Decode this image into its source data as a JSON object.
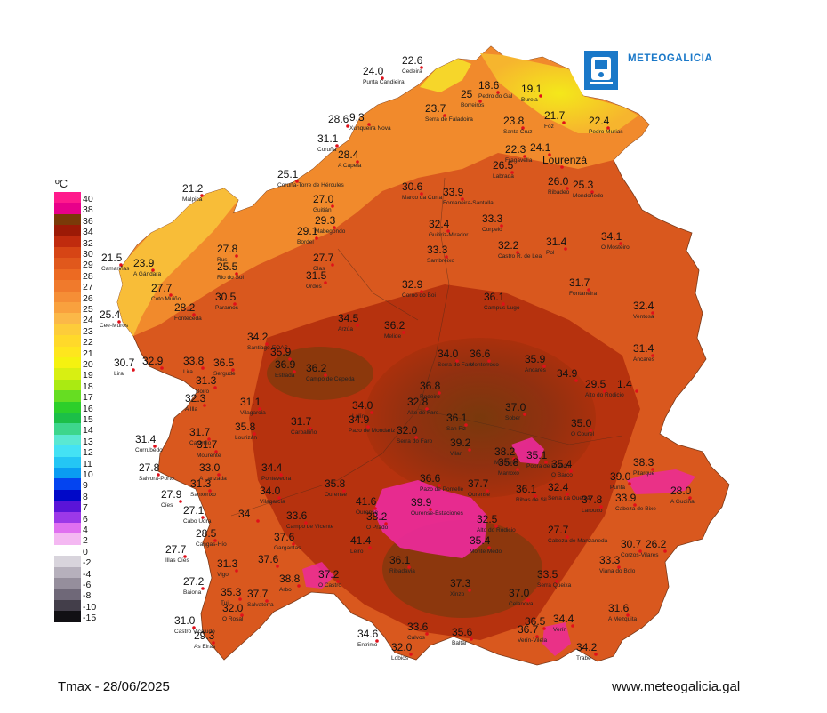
{
  "header": {
    "brand": "METEOGALICIA"
  },
  "legend": {
    "title": "ºC",
    "entries": [
      {
        "label": "40",
        "color": "#ff1a8c"
      },
      {
        "label": "38",
        "color": "#e8008a"
      },
      {
        "label": "36",
        "color": "#7a3a08"
      },
      {
        "label": "34",
        "color": "#9c1a06"
      },
      {
        "label": "32",
        "color": "#c02b0e"
      },
      {
        "label": "30",
        "color": "#d64515"
      },
      {
        "label": "29",
        "color": "#e0581c"
      },
      {
        "label": "28",
        "color": "#ec6a22"
      },
      {
        "label": "27",
        "color": "#f07a2c"
      },
      {
        "label": "26",
        "color": "#f58e36"
      },
      {
        "label": "25",
        "color": "#f9a13e"
      },
      {
        "label": "24",
        "color": "#fbb848"
      },
      {
        "label": "23",
        "color": "#fdcc3a"
      },
      {
        "label": "22",
        "color": "#ffd92a"
      },
      {
        "label": "21",
        "color": "#fee61e"
      },
      {
        "label": "20",
        "color": "#f5f210"
      },
      {
        "label": "19",
        "color": "#d8ef12"
      },
      {
        "label": "18",
        "color": "#aaea12"
      },
      {
        "label": "17",
        "color": "#66dd22"
      },
      {
        "label": "16",
        "color": "#2ccf2a"
      },
      {
        "label": "15",
        "color": "#1cbf48"
      },
      {
        "label": "14",
        "color": "#3dd68c"
      },
      {
        "label": "13",
        "color": "#5ae8d2"
      },
      {
        "label": "12",
        "color": "#44e2f4"
      },
      {
        "label": "11",
        "color": "#24c6f4"
      },
      {
        "label": "10",
        "color": "#0a9cf2"
      },
      {
        "label": "9",
        "color": "#0444f0"
      },
      {
        "label": "8",
        "color": "#0008c8"
      },
      {
        "label": "7",
        "color": "#5a14d8"
      },
      {
        "label": "6",
        "color": "#9c38e8"
      },
      {
        "label": "4",
        "color": "#e070f0"
      },
      {
        "label": "2",
        "color": "#f4b8f2"
      },
      {
        "label": "0",
        "color": "#ffffff"
      },
      {
        "label": "-2",
        "color": "#d8d4dc"
      },
      {
        "label": "-4",
        "color": "#b6b0bc"
      },
      {
        "label": "-6",
        "color": "#958e9c"
      },
      {
        "label": "-8",
        "color": "#6f6878"
      },
      {
        "label": "-10",
        "color": "#433e4a"
      },
      {
        "label": "-15",
        "color": "#111014"
      }
    ]
  },
  "stations": [
    {
      "value": "24.0",
      "name": "Punta Candieira"
    },
    {
      "value": "22.6",
      "name": "Cedeira"
    },
    {
      "value": "18.6",
      "name": "Pedro do Gal"
    },
    {
      "value": "25",
      "name": "Borreiros"
    },
    {
      "value": "19.1",
      "name": "Burela"
    },
    {
      "value": "23.7",
      "name": "Serra de Faladoira"
    },
    {
      "value": "28.6",
      "name": ""
    },
    {
      "value": "9.3",
      "name": "Xunqueira Nova"
    },
    {
      "value": "23.8",
      "name": "Santa Cruz"
    },
    {
      "value": "21.7",
      "name": "Foz"
    },
    {
      "value": "22.4",
      "name": "Pedro Murias"
    },
    {
      "value": "31.1",
      "name": "Coruña"
    },
    {
      "value": "22.3",
      "name": "Fragavella"
    },
    {
      "value": "24.1",
      "name": ""
    },
    {
      "value": "Lourenzá",
      "name": ""
    },
    {
      "value": "28.4",
      "name": "A Capela"
    },
    {
      "value": "26.5",
      "name": "Labrada"
    },
    {
      "value": "25.1",
      "name": "Coruña-Torre de Hércules"
    },
    {
      "value": "26.0",
      "name": "Ribadeo"
    },
    {
      "value": "25.3",
      "name": "Mondoñedo"
    },
    {
      "value": "21.2",
      "name": "Malpica"
    },
    {
      "value": "27.0",
      "name": "Guitián"
    },
    {
      "value": "30.6",
      "name": "Marco da Curra"
    },
    {
      "value": "33.9",
      "name": "Fontaneira-Santalla"
    },
    {
      "value": "29.3",
      "name": "Mabegondo"
    },
    {
      "value": "29.1",
      "name": "Bordel"
    },
    {
      "value": "32.4",
      "name": "Guitiriz-Mirador"
    },
    {
      "value": "33.3",
      "name": "Corpelo"
    },
    {
      "value": "34.1",
      "name": "O Mosteiro"
    },
    {
      "value": "27.8",
      "name": "Rus"
    },
    {
      "value": "27.7",
      "name": "Olas"
    },
    {
      "value": "33.3",
      "name": "Sambreixo"
    },
    {
      "value": "32.2",
      "name": "Castro R. de Lea"
    },
    {
      "value": "31.4",
      "name": "Pol"
    },
    {
      "value": "21.5",
      "name": "Camariñas"
    },
    {
      "value": "23.9",
      "name": "A Gándara"
    },
    {
      "value": "25.5",
      "name": "Rio do Sol"
    },
    {
      "value": "31.5",
      "name": "Ordes"
    },
    {
      "value": "27.7",
      "name": "Coto Muiño"
    },
    {
      "value": "30.5",
      "name": "Paramos"
    },
    {
      "value": "32.9",
      "name": "Corno do Boi"
    },
    {
      "value": "31.7",
      "name": "Fontaneira"
    },
    {
      "value": "28.2",
      "name": "Fonteceda"
    },
    {
      "value": "36.1",
      "name": "Campus Lugo"
    },
    {
      "value": "32.4",
      "name": "Ventosa"
    },
    {
      "value": "25.4",
      "name": "Cee-Muros"
    },
    {
      "value": "34.5",
      "name": "Arzúa"
    },
    {
      "value": "36.2",
      "name": "Melide"
    },
    {
      "value": "34.2",
      "name": "Santiago-EOAS"
    },
    {
      "value": "30.7",
      "name": "Lira"
    },
    {
      "value": "32.9",
      "name": ""
    },
    {
      "value": "33.8",
      "name": "Lira"
    },
    {
      "value": "36.5",
      "name": "Sergude"
    },
    {
      "value": "35.9",
      "name": ""
    },
    {
      "value": "36.9",
      "name": "Estrada"
    },
    {
      "value": "36.2",
      "name": "Campo de Cepeda"
    },
    {
      "value": "34.0",
      "name": "Serra do Faro"
    },
    {
      "value": "36.6",
      "name": "Monterroso"
    },
    {
      "value": "35.9",
      "name": "Ancares"
    },
    {
      "value": "31.4",
      "name": "Ancares"
    },
    {
      "value": "31.3",
      "name": "Boiro"
    },
    {
      "value": "34.9",
      "name": ""
    },
    {
      "value": "29.5",
      "name": "Alto do Rodicio"
    },
    {
      "value": "1.4",
      "name": ""
    },
    {
      "value": "36.8",
      "name": "Rodeiro"
    },
    {
      "value": "32.3",
      "name": "A Illa"
    },
    {
      "value": "31.1",
      "name": "Vilagarcía"
    },
    {
      "value": "34.0",
      "name": "Lalín"
    },
    {
      "value": "32.8",
      "name": "Alto do Faro"
    },
    {
      "value": "37.0",
      "name": "Sober"
    },
    {
      "value": "34.9",
      "name": "Pazo de Mondariz"
    },
    {
      "value": "36.1",
      "name": "San Fiz"
    },
    {
      "value": "35.0",
      "name": "O Courel"
    },
    {
      "value": "31.7",
      "name": "Castrelo"
    },
    {
      "value": "35.8",
      "name": "Lourizán"
    },
    {
      "value": "31.7",
      "name": "Carballiño"
    },
    {
      "value": "32.0",
      "name": "Serra do Faro"
    },
    {
      "value": "31.4",
      "name": "Corrubedo"
    },
    {
      "value": "39.2",
      "name": "Vilar"
    },
    {
      "value": "38.2",
      "name": "Monforte"
    },
    {
      "value": "31.7",
      "name": "Mourente"
    },
    {
      "value": "35.8",
      "name": "Marroxo"
    },
    {
      "value": "35.1",
      "name": "Pobra de Brollón"
    },
    {
      "value": "35.4",
      "name": "O Barco"
    },
    {
      "value": "38.3",
      "name": "Pitarque"
    },
    {
      "value": "27.8",
      "name": "Salvora-Porto"
    },
    {
      "value": "33.0",
      "name": "A Lanzada"
    },
    {
      "value": "34.4",
      "name": "Pontevedra"
    },
    {
      "value": "39.0",
      "name": "Punta"
    },
    {
      "value": "31.3",
      "name": "Sanxenxo"
    },
    {
      "value": "34.0",
      "name": "Vilagarcía"
    },
    {
      "value": "35.8",
      "name": "Ourense"
    },
    {
      "value": "36.6",
      "name": "Pazo de Pontelle"
    },
    {
      "value": "37.7",
      "name": "Ourense"
    },
    {
      "value": "36.1",
      "name": "Ribas de Sil"
    },
    {
      "value": "32.4",
      "name": "Serra da Queixa"
    },
    {
      "value": "37.8",
      "name": "Larouco"
    },
    {
      "value": "33.9",
      "name": "Cabeza de Bixe"
    },
    {
      "value": "28.0",
      "name": "A Gudiña"
    },
    {
      "value": "27.9",
      "name": "Cíes"
    },
    {
      "value": "41.6",
      "name": "Ourense"
    },
    {
      "value": "39.9",
      "name": "Ourense-Estaciones"
    },
    {
      "value": "27.1",
      "name": "Cabo Udra"
    },
    {
      "value": "34",
      "name": ""
    },
    {
      "value": "33.6",
      "name": "Campo de Vicente"
    },
    {
      "value": "38.2",
      "name": "O Prado"
    },
    {
      "value": "32.5",
      "name": "Alto do Rodicio"
    },
    {
      "value": "27.7",
      "name": "Cabeza de Manzaneda"
    },
    {
      "value": "28.5",
      "name": "Cangas-Hío"
    },
    {
      "value": "37.6",
      "name": "Gargantas"
    },
    {
      "value": "41.4",
      "name": "Leiro"
    },
    {
      "value": "35.4",
      "name": "Monte Medo"
    },
    {
      "value": "30.7",
      "name": "Corzos-Vilares"
    },
    {
      "value": "26.2",
      "name": ""
    },
    {
      "value": "27.7",
      "name": "Illas Cíes"
    },
    {
      "value": "31.3",
      "name": "Vigo"
    },
    {
      "value": "37.6",
      "name": ""
    },
    {
      "value": "36.1",
      "name": "Ribadavia"
    },
    {
      "value": "33.3",
      "name": "Viana do Bolo"
    },
    {
      "value": "38.8",
      "name": "Arbo"
    },
    {
      "value": "37.2",
      "name": "O Castro"
    },
    {
      "value": "33.5",
      "name": "Serra Queixa"
    },
    {
      "value": "27.2",
      "name": "Baiona"
    },
    {
      "value": "37.3",
      "name": "Xinzo"
    },
    {
      "value": "35.3",
      "name": "Tui"
    },
    {
      "value": "37.7",
      "name": "Salvaterra"
    },
    {
      "value": "37.0",
      "name": "Celanova"
    },
    {
      "value": "32.0",
      "name": "O Rosal"
    },
    {
      "value": "31.6",
      "name": "A Mezquita"
    },
    {
      "value": "31.0",
      "name": "Castro Vicaludo"
    },
    {
      "value": "36.5",
      "name": ""
    },
    {
      "value": "34.4",
      "name": "Verín"
    },
    {
      "value": "36.7",
      "name": "Verín-Vilela"
    },
    {
      "value": "29.3",
      "name": "As Eiras"
    },
    {
      "value": "34.6",
      "name": "Entrimo"
    },
    {
      "value": "33.6",
      "name": "Calvos"
    },
    {
      "value": "35.6",
      "name": "Baltar"
    },
    {
      "value": "32.0",
      "name": "Lobios"
    },
    {
      "value": "34.2",
      "name": "Trabe"
    }
  ],
  "footer": {
    "caption": "Tmax - 28/06/2025",
    "url": "www.meteogalicia.gal"
  }
}
